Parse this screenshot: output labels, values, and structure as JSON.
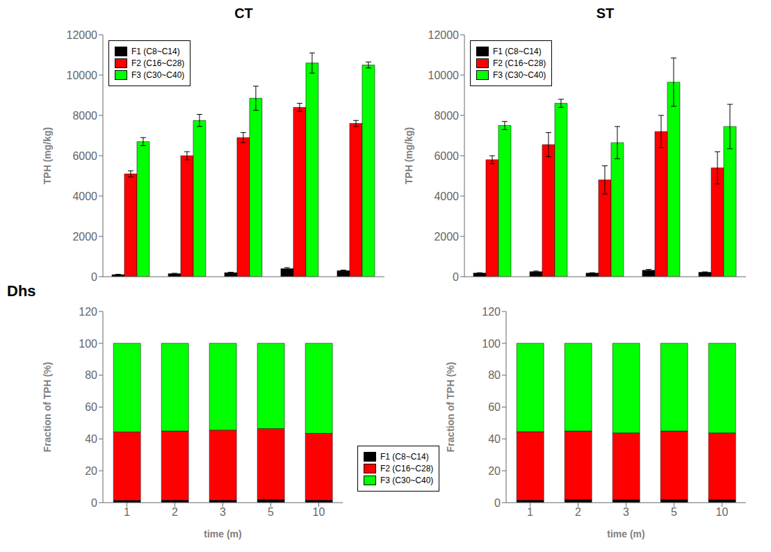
{
  "chart_data": [
    {
      "type": "bar",
      "title": "CT",
      "annotations": [
        "Dhs"
      ],
      "categories": [
        "1",
        "2",
        "3",
        "5",
        "10"
      ],
      "tick_labels": "y",
      "ylabel": "TPH (mg/kg)",
      "ylim": [
        0,
        12000
      ],
      "yticks": [
        0,
        2000,
        4000,
        6000,
        8000,
        10000,
        12000
      ],
      "grid": false,
      "legend": "upper left",
      "series": [
        {
          "name": "F1 (C8~C14)",
          "color": "#000000",
          "values": [
            100,
            150,
            200,
            400,
            300
          ],
          "errors": [
            20,
            20,
            20,
            50,
            30
          ]
        },
        {
          "name": "F2 (C16~C28)",
          "color": "#ff0000",
          "values": [
            5100,
            6000,
            6900,
            8400,
            7600
          ],
          "errors": [
            150,
            200,
            250,
            200,
            150
          ]
        },
        {
          "name": "F3 (C30~C40)",
          "color": "#00ff00",
          "values": [
            6700,
            7750,
            8850,
            10600,
            10500
          ],
          "errors": [
            200,
            300,
            600,
            500,
            150
          ]
        }
      ]
    },
    {
      "type": "bar",
      "title": "ST",
      "categories": [
        "1",
        "2",
        "3",
        "5",
        "10"
      ],
      "tick_labels": "y",
      "ylabel": "TPH (mg/kg)",
      "ylim": [
        0,
        12000
      ],
      "yticks": [
        0,
        2000,
        4000,
        6000,
        8000,
        10000,
        12000
      ],
      "grid": false,
      "legend": "upper left",
      "series": [
        {
          "name": "F1 (C8~C14)",
          "color": "#000000",
          "values": [
            180,
            250,
            180,
            320,
            220
          ],
          "errors": [
            20,
            30,
            20,
            40,
            20
          ]
        },
        {
          "name": "F2 (C16~C28)",
          "color": "#ff0000",
          "values": [
            5800,
            6550,
            4800,
            7200,
            5400
          ],
          "errors": [
            200,
            600,
            700,
            800,
            800
          ]
        },
        {
          "name": "F3 (C30~C40)",
          "color": "#00ff00",
          "values": [
            7500,
            8600,
            6650,
            9650,
            7450
          ],
          "errors": [
            200,
            200,
            800,
            1200,
            1100
          ]
        }
      ]
    },
    {
      "type": "bar",
      "stacked": true,
      "categories": [
        "1",
        "2",
        "3",
        "5",
        "10"
      ],
      "xlabel": "time (m)",
      "ylabel": "Fraction of TPH (%)",
      "ylim": [
        0,
        120
      ],
      "yticks": [
        0,
        20,
        40,
        60,
        80,
        100,
        120
      ],
      "grid": false,
      "legend": "right",
      "series": [
        {
          "name": "F1 (C8~C14)",
          "color": "#000000",
          "values": [
            1.4,
            1.5,
            1.5,
            2.0,
            1.5
          ]
        },
        {
          "name": "F2 (C16~C28)",
          "color": "#ff0000",
          "values": [
            43.0,
            43.5,
            44.0,
            44.5,
            42.0
          ]
        },
        {
          "name": "F3 (C30~C40)",
          "color": "#00ff00",
          "values": [
            55.6,
            55.0,
            54.5,
            53.5,
            56.5
          ]
        }
      ]
    },
    {
      "type": "bar",
      "stacked": true,
      "categories": [
        "1",
        "2",
        "3",
        "5",
        "10"
      ],
      "xlabel": "time (m)",
      "ylabel": "Fraction of TPH (%)",
      "ylim": [
        0,
        120
      ],
      "yticks": [
        0,
        20,
        40,
        60,
        80,
        100,
        120
      ],
      "grid": false,
      "series": [
        {
          "name": "F1 (C8~C14)",
          "color": "#000000",
          "values": [
            1.5,
            2.0,
            1.8,
            2.0,
            1.8
          ]
        },
        {
          "name": "F2 (C16~C28)",
          "color": "#ff0000",
          "values": [
            43.0,
            43.0,
            42.0,
            43.0,
            42.0
          ]
        },
        {
          "name": "F3 (C30~C40)",
          "color": "#00ff00",
          "values": [
            55.5,
            55.0,
            56.2,
            55.0,
            56.2
          ]
        }
      ]
    }
  ]
}
